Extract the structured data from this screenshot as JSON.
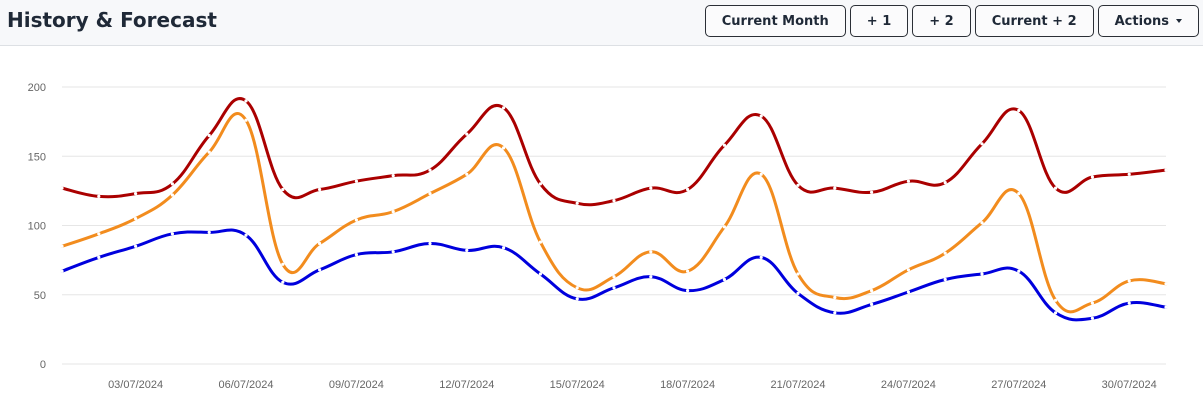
{
  "header": {
    "title": "History & Forecast",
    "buttons": [
      {
        "label": "Current Month"
      },
      {
        "label": "+ 1"
      },
      {
        "label": "+ 2"
      },
      {
        "label": "Current + 2"
      },
      {
        "label": "Actions",
        "has_dropdown": true
      }
    ]
  },
  "chart_data": {
    "type": "line",
    "smooth": true,
    "grid": "horizontal",
    "ylim": [
      0,
      200
    ],
    "y_ticks": [
      0,
      50,
      100,
      150,
      200
    ],
    "x_tick_labels": [
      "03/07/2024",
      "06/07/2024",
      "09/07/2024",
      "12/07/2024",
      "15/07/2024",
      "18/07/2024",
      "21/07/2024",
      "24/07/2024",
      "27/07/2024",
      "30/07/2024"
    ],
    "x": [
      "01/07/2024",
      "02/07/2024",
      "03/07/2024",
      "04/07/2024",
      "05/07/2024",
      "06/07/2024",
      "07/07/2024",
      "08/07/2024",
      "09/07/2024",
      "10/07/2024",
      "11/07/2024",
      "12/07/2024",
      "13/07/2024",
      "14/07/2024",
      "15/07/2024",
      "16/07/2024",
      "17/07/2024",
      "18/07/2024",
      "19/07/2024",
      "20/07/2024",
      "21/07/2024",
      "22/07/2024",
      "23/07/2024",
      "24/07/2024",
      "25/07/2024",
      "26/07/2024",
      "27/07/2024",
      "28/07/2024",
      "29/07/2024",
      "30/07/2024",
      "31/07/2024"
    ],
    "series": [
      {
        "color": "#aa0000",
        "values": [
          127,
          121,
          123,
          130,
          165,
          190,
          126,
          126,
          132,
          136,
          140,
          166,
          185,
          130,
          116,
          118,
          127,
          126,
          158,
          179,
          129,
          127,
          124,
          132,
          131,
          159,
          183,
          127,
          135,
          137,
          140
        ]
      },
      {
        "color": "#f28c1e",
        "values": [
          85,
          94,
          105,
          122,
          153,
          176,
          72,
          87,
          104,
          110,
          123,
          137,
          156,
          88,
          55,
          63,
          81,
          67,
          99,
          137,
          65,
          48,
          53,
          68,
          80,
          102,
          123,
          46,
          44,
          60,
          58
        ]
      },
      {
        "color": "#0000dd",
        "values": [
          67,
          77,
          85,
          94,
          95,
          93,
          59,
          68,
          79,
          81,
          87,
          82,
          84,
          65,
          47,
          55,
          63,
          53,
          61,
          77,
          51,
          37,
          43,
          52,
          61,
          65,
          67,
          37,
          33,
          44,
          41
        ]
      }
    ]
  }
}
